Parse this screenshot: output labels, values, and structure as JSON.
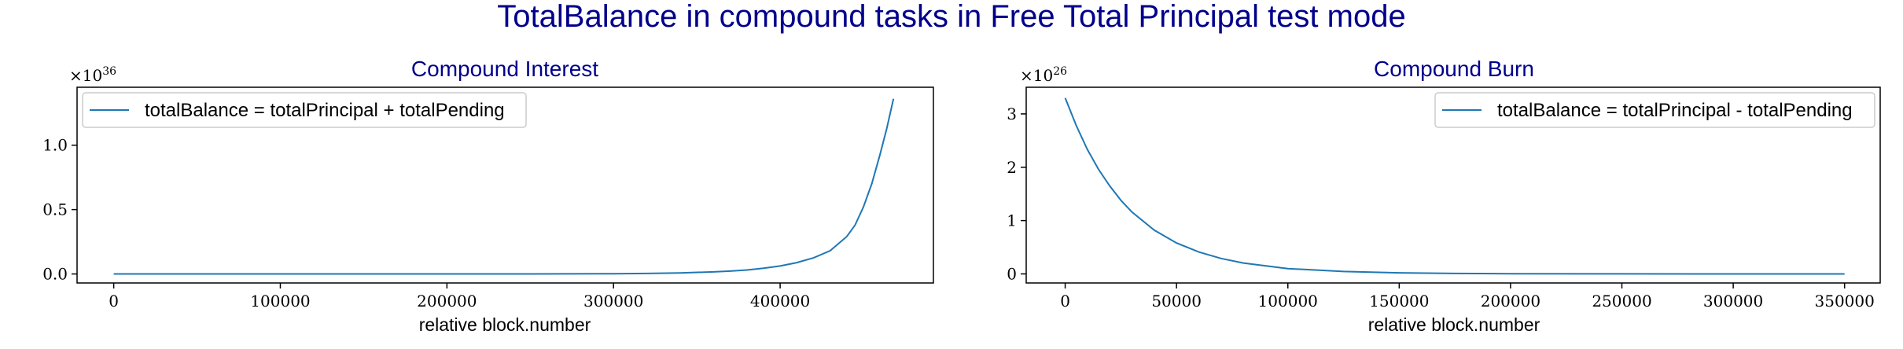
{
  "figure": {
    "title": "TotalBalance in compound tasks in Free Total Principal test mode",
    "title_color": "#00008b",
    "line_color": "#1f77b4"
  },
  "chart_data": [
    {
      "type": "line",
      "title": "Compound Interest",
      "xlabel": "relative block.number",
      "ylabel": "",
      "offset_base": "×10",
      "offset_exp": "36",
      "xlim": [
        -22000,
        492000
      ],
      "ylim": [
        -0.07,
        1.45
      ],
      "xticks": [
        0,
        100000,
        200000,
        300000,
        400000
      ],
      "xtick_labels": [
        "0",
        "100000",
        "200000",
        "300000",
        "400000"
      ],
      "yticks": [
        0.0,
        0.5,
        1.0
      ],
      "ytick_labels": [
        "0.0",
        "0.5",
        "1.0"
      ],
      "legend_loc": "upper-left",
      "series": [
        {
          "name": "totalBalance = totalPrincipal + totalPending",
          "x": [
            0,
            50000,
            100000,
            150000,
            200000,
            250000,
            300000,
            320000,
            340000,
            360000,
            370000,
            380000,
            390000,
            400000,
            410000,
            420000,
            430000,
            440000,
            445000,
            450000,
            455000,
            460000,
            464000,
            468000
          ],
          "y": [
            0.0,
            0.0,
            0.0,
            0.0,
            0.0,
            0.0001,
            0.002,
            0.004,
            0.008,
            0.016,
            0.022,
            0.031,
            0.044,
            0.062,
            0.088,
            0.125,
            0.18,
            0.29,
            0.38,
            0.52,
            0.7,
            0.93,
            1.13,
            1.36
          ]
        }
      ]
    },
    {
      "type": "line",
      "title": "Compound Burn",
      "xlabel": "relative block.number",
      "ylabel": "",
      "offset_base": "×10",
      "offset_exp": "26",
      "xlim": [
        -17500,
        366000
      ],
      "ylim": [
        -0.17,
        3.5
      ],
      "xticks": [
        0,
        50000,
        100000,
        150000,
        200000,
        250000,
        300000,
        350000
      ],
      "xtick_labels": [
        "0",
        "50000",
        "100000",
        "150000",
        "200000",
        "250000",
        "300000",
        "350000"
      ],
      "yticks": [
        0,
        1,
        2,
        3
      ],
      "ytick_labels": [
        "0",
        "1",
        "2",
        "3"
      ],
      "legend_loc": "upper-right",
      "series": [
        {
          "name": "totalBalance = totalPrincipal - totalPending",
          "x": [
            0,
            5000,
            10000,
            15000,
            20000,
            25000,
            30000,
            40000,
            50000,
            60000,
            70000,
            80000,
            100000,
            125000,
            150000,
            175000,
            200000,
            250000,
            300000,
            350000
          ],
          "y": [
            3.3,
            2.78,
            2.33,
            1.96,
            1.65,
            1.38,
            1.16,
            0.82,
            0.58,
            0.41,
            0.29,
            0.205,
            0.1,
            0.045,
            0.02,
            0.009,
            0.004,
            0.001,
            0.0002,
            0.0
          ]
        }
      ]
    }
  ]
}
